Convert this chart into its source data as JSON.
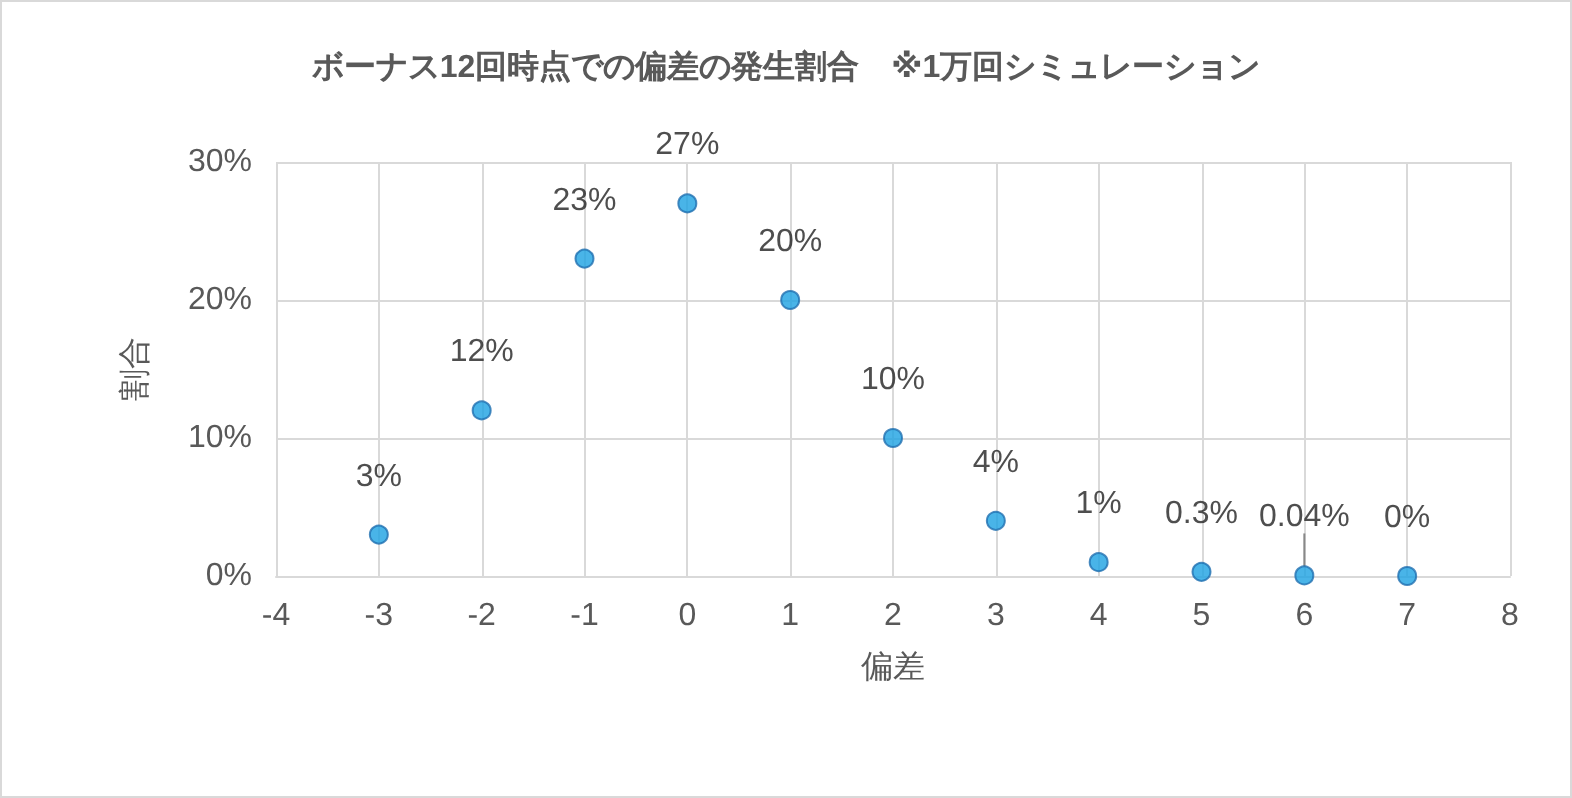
{
  "chart_data": {
    "type": "scatter",
    "title": "ボーナス12回時点での偏差の発生割合　※1万回シミュレーション",
    "xlabel": "偏差",
    "ylabel": "割合",
    "x": [
      -3,
      -2,
      -1,
      0,
      1,
      2,
      3,
      4,
      5,
      6,
      7
    ],
    "series": [
      {
        "color": "#1ba1e2",
        "values": [
          3,
          12,
          23,
          27,
          20,
          10,
          4,
          1,
          0.3,
          0.04,
          0
        ],
        "value_labels": [
          "3%",
          "12%",
          "23%",
          "27%",
          "20%",
          "10%",
          "4%",
          "1%",
          "0.3%",
          "0.04%",
          "0%"
        ]
      }
    ],
    "xlim": [
      -4,
      8
    ],
    "xticks": [
      -4,
      -3,
      -2,
      -1,
      0,
      1,
      2,
      3,
      4,
      5,
      6,
      7,
      8
    ],
    "ylim": [
      0,
      30
    ],
    "yticks": [
      {
        "value": 0,
        "label": "0%"
      },
      {
        "value": 10,
        "label": "10%"
      },
      {
        "value": 20,
        "label": "20%"
      },
      {
        "value": 30,
        "label": "30%"
      }
    ],
    "grid": true,
    "marker": "circle"
  }
}
